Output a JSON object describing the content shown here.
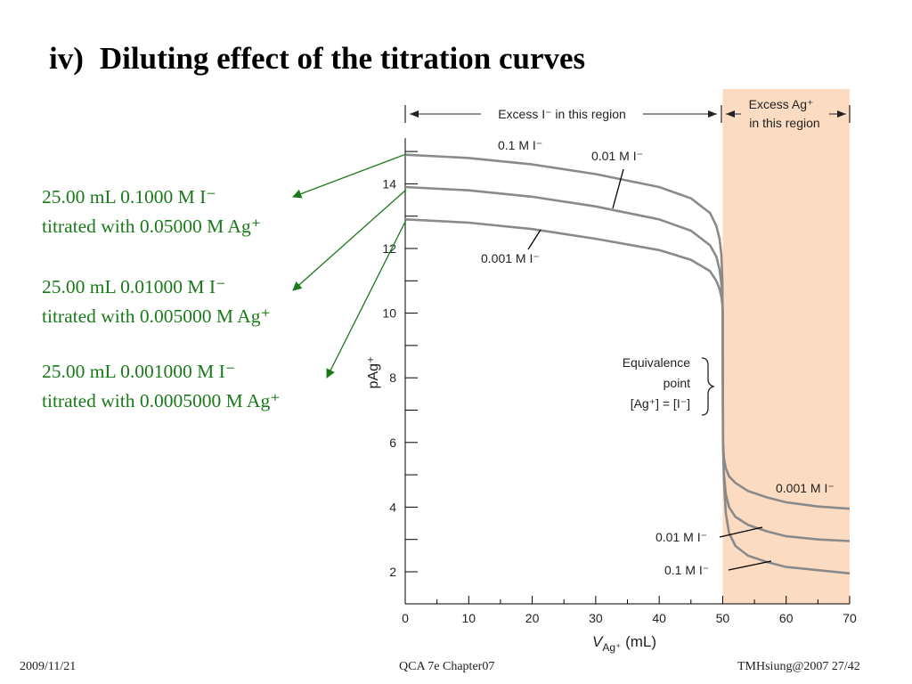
{
  "slide": {
    "title_number": "iv)",
    "title": "Diluting effect of the titration curves",
    "notes": [
      {
        "line1": "25.00 mL 0.1000 M I⁻",
        "line2": "titrated with 0.05000 M Ag⁺"
      },
      {
        "line1": "25.00 mL 0.01000 M I⁻",
        "line2": "titrated with 0.005000 M Ag⁺"
      },
      {
        "line1": "25.00 mL 0.001000 M I⁻",
        "line2": "titrated with 0.0005000 M Ag⁺"
      }
    ],
    "note_color": "#1a7a1a",
    "footer_left": "2009/11/21",
    "footer_center": "QCA 7e Chapter07",
    "footer_right": "TMHsiung@2007 27/42"
  },
  "chart_data": {
    "type": "line",
    "xlabel": "V",
    "xlabel_sub": "Ag⁺",
    "xlabel_unit": "(mL)",
    "ylabel": "pAg⁺",
    "xlim": [
      0,
      70
    ],
    "ylim": [
      1,
      15.5
    ],
    "x_ticks": [
      0,
      10,
      20,
      30,
      40,
      50,
      60,
      70
    ],
    "y_ticks": [
      2,
      4,
      6,
      8,
      10,
      12,
      14
    ],
    "equivalence_x": 50,
    "region_left_label": "Excess I⁻ in this region",
    "region_right_label_1": "Excess Ag⁺",
    "region_right_label_2": "in this region",
    "region_right_color": "#fbdcc2",
    "curve_color": "#8a8a8a",
    "equivalence_label": [
      "Equivalence",
      "point",
      "[Ag⁺] = [I⁻]"
    ],
    "series": [
      {
        "name": "0.1 M I⁻",
        "right_name": "0.1 M I⁻",
        "x": [
          0,
          10,
          20,
          30,
          40,
          45,
          48,
          49,
          49.5,
          49.8,
          49.95,
          50
        ],
        "y": [
          14.9,
          14.8,
          14.6,
          14.3,
          13.9,
          13.55,
          13.1,
          12.7,
          12.3,
          11.8,
          11.0,
          10.0
        ],
        "x2": [
          50,
          50.05,
          50.2,
          50.5,
          51,
          52,
          54,
          57,
          60,
          65,
          70
        ],
        "y2": [
          10.0,
          6.0,
          4.8,
          3.8,
          3.2,
          2.8,
          2.5,
          2.3,
          2.15,
          2.05,
          1.95
        ]
      },
      {
        "name": "0.01 M I⁻",
        "right_name": "0.01 M I⁻",
        "x": [
          0,
          10,
          20,
          30,
          40,
          45,
          48,
          49,
          49.5,
          49.8,
          49.95,
          50
        ],
        "y": [
          13.9,
          13.8,
          13.6,
          13.3,
          12.9,
          12.55,
          12.1,
          11.75,
          11.35,
          10.9,
          10.4,
          10.0
        ],
        "x2": [
          50,
          50.05,
          50.2,
          50.5,
          51,
          52,
          54,
          57,
          60,
          65,
          70
        ],
        "y2": [
          10.0,
          6.0,
          5.0,
          4.4,
          4.0,
          3.7,
          3.45,
          3.25,
          3.1,
          3.0,
          2.95
        ]
      },
      {
        "name": "0.001 M I⁻",
        "right_name": "0.001 M I⁻",
        "x": [
          0,
          10,
          20,
          30,
          40,
          45,
          48,
          49,
          49.5,
          49.8,
          49.95,
          50
        ],
        "y": [
          12.9,
          12.8,
          12.6,
          12.3,
          11.95,
          11.65,
          11.3,
          11.0,
          10.75,
          10.5,
          10.25,
          10.0
        ],
        "x2": [
          50,
          50.05,
          50.2,
          50.5,
          51,
          52,
          54,
          57,
          60,
          65,
          70
        ],
        "y2": [
          10.0,
          6.0,
          5.5,
          5.2,
          4.95,
          4.75,
          4.5,
          4.3,
          4.15,
          4.02,
          3.95
        ]
      }
    ]
  }
}
